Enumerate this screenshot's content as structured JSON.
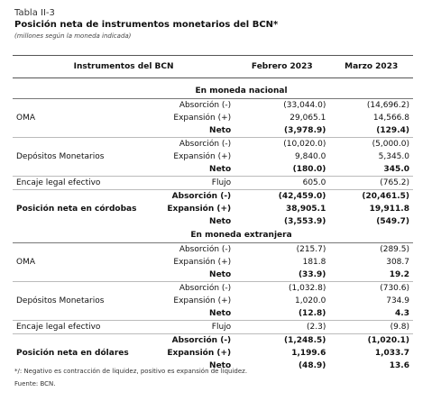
{
  "header": {
    "label": "Tabla II-3",
    "title": "Posición neta de instrumentos monetarios del BCN*",
    "subtitle": "(millones según la moneda indicada)"
  },
  "table": {
    "columns": [
      "Instrumentos del BCN",
      "Febrero 2023",
      "Marzo 2023"
    ],
    "sections": [
      {
        "title": "En moneda nacional",
        "groups": [
          {
            "label": "OMA",
            "rows": [
              {
                "concept": "Absorción (-)",
                "feb": "(33,044.0)",
                "mar": "(14,696.2)"
              },
              {
                "concept": "Expansión (+)",
                "feb": "29,065.1",
                "mar": "14,566.8"
              },
              {
                "concept": "Neto",
                "feb": "(3,978.9)",
                "mar": "(129.4)",
                "bold": true
              }
            ]
          },
          {
            "label": "Depósitos Monetarios",
            "rows": [
              {
                "concept": "Absorción (-)",
                "feb": "(10,020.0)",
                "mar": "(5,000.0)"
              },
              {
                "concept": "Expansión (+)",
                "feb": "9,840.0",
                "mar": "5,345.0"
              },
              {
                "concept": "Neto",
                "feb": "(180.0)",
                "mar": "345.0",
                "bold": true
              }
            ]
          },
          {
            "label": "Encaje legal efectivo",
            "rows": [
              {
                "concept": "Flujo",
                "feb": "605.0",
                "mar": "(765.2)"
              }
            ]
          },
          {
            "label": "Posición neta en córdobas",
            "bold": true,
            "rows": [
              {
                "concept": "Absorción (-)",
                "feb": "(42,459.0)",
                "mar": "(20,461.5)",
                "bold": true
              },
              {
                "concept": "Expansión (+)",
                "feb": "38,905.1",
                "mar": "19,911.8",
                "bold": true
              },
              {
                "concept": "Neto",
                "feb": "(3,553.9)",
                "mar": "(549.7)",
                "bold": true
              }
            ]
          }
        ]
      },
      {
        "title": "En moneda extranjera",
        "groups": [
          {
            "label": "OMA",
            "rows": [
              {
                "concept": "Absorción (-)",
                "feb": "(215.7)",
                "mar": "(289.5)"
              },
              {
                "concept": "Expansión (+)",
                "feb": "181.8",
                "mar": "308.7"
              },
              {
                "concept": "Neto",
                "feb": "(33.9)",
                "mar": "19.2",
                "bold": true
              }
            ]
          },
          {
            "label": "Depósitos Monetarios",
            "rows": [
              {
                "concept": "Absorción (-)",
                "feb": "(1,032.8)",
                "mar": "(730.6)"
              },
              {
                "concept": "Expansión (+)",
                "feb": "1,020.0",
                "mar": "734.9"
              },
              {
                "concept": "Neto",
                "feb": "(12.8)",
                "mar": "4.3",
                "bold": true
              }
            ]
          },
          {
            "label": "Encaje legal efectivo",
            "rows": [
              {
                "concept": "Flujo",
                "feb": "(2.3)",
                "mar": "(9.8)"
              }
            ]
          },
          {
            "label": "Posición neta en dólares",
            "bold": true,
            "rows": [
              {
                "concept": "Absorción (-)",
                "feb": "(1,248.5)",
                "mar": "(1,020.1)",
                "bold": true
              },
              {
                "concept": "Expansión (+)",
                "feb": "1,199.6",
                "mar": "1,033.7",
                "bold": true
              },
              {
                "concept": "Neto",
                "feb": "(48.9)",
                "mar": "13.6",
                "bold": true
              }
            ]
          }
        ]
      }
    ]
  },
  "footnotes": [
    "*/: Negativo es contracción de liquidez, positivo es expansión de liquidez.",
    "Fuente: BCN."
  ]
}
